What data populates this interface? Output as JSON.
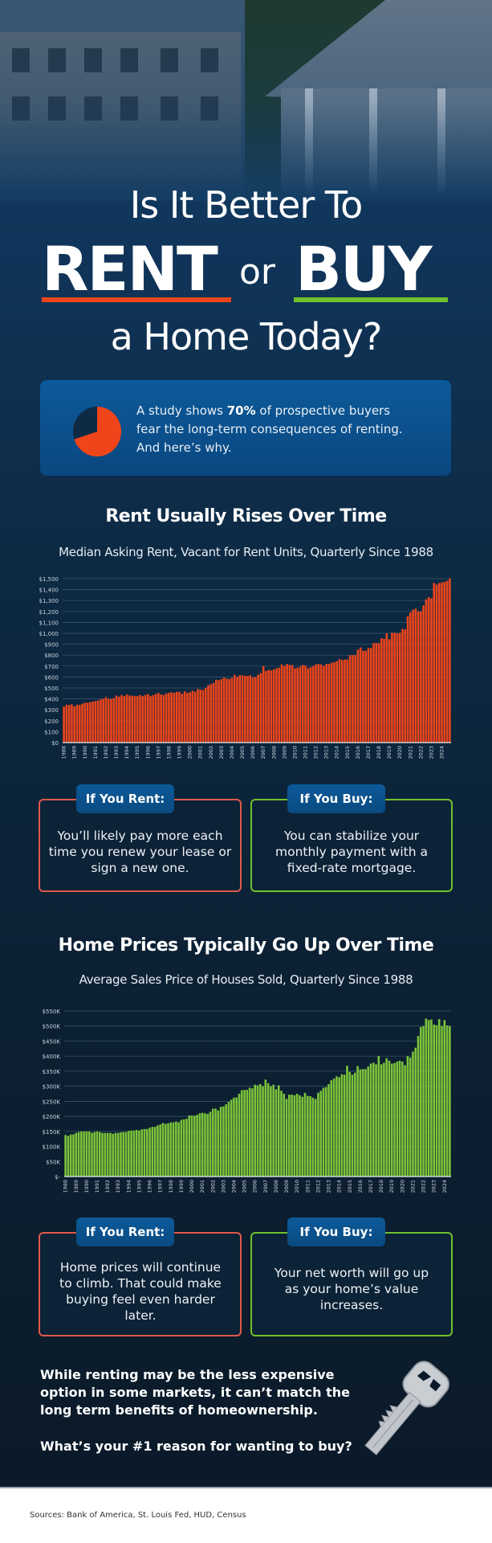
{
  "header": {
    "title_line1": "Is It Better To",
    "title_rent": "RENT",
    "title_or": "or",
    "title_buy": "BUY",
    "title_line3": "a Home Today?"
  },
  "stat": {
    "text_before": "A study shows ",
    "percent": "70%",
    "text_after": " of prospective buyers fear the long-term consequences of renting. And here’s why.",
    "pie_value_percent": 70,
    "pie_color": "#f0451b",
    "pie_rest_color": "#0f2a45"
  },
  "colors": {
    "accent_rent": "#f0451b",
    "accent_buy": "#6fc12d",
    "box_blue": "#0c5a9a"
  },
  "section1": {
    "heading": "Rent Usually Rises Over Time",
    "subtitle": "Median Asking Rent, Vacant for Rent Units, Quarterly Since 1988",
    "rent_box": {
      "label": "If You Rent:",
      "text": "You’ll likely pay more each time you renew your lease or sign a new one."
    },
    "buy_box": {
      "label": "If You Buy:",
      "text": "You can stabilize your monthly payment with a fixed-rate mortgage."
    }
  },
  "section2": {
    "heading": "Home Prices Typically Go Up Over Time",
    "subtitle": "Average Sales Price of Houses Sold, Quarterly Since 1988",
    "rent_box": {
      "label": "If You Rent:",
      "text": "Home prices will continue to climb. That could make buying feel even harder later."
    },
    "buy_box": {
      "label": "If You Buy:",
      "text": "Your net worth will go up as your home’s value increases."
    }
  },
  "closing": {
    "text": "While renting may be the less expensive option in some markets, it can’t match the long term benefits of homeownership.",
    "question": "What’s your #1 reason for wanting to buy?"
  },
  "footer": {
    "sources": "Sources: Bank of America, St. Louis Fed, HUD, Census"
  },
  "chart_data": [
    {
      "type": "bar",
      "title": "Median Asking Rent, Vacant for Rent Units, Quarterly Since 1988",
      "color": "#f0451b",
      "ylim": [
        0,
        1500
      ],
      "yticks": [
        "$0",
        "$100",
        "$200",
        "$300",
        "$400",
        "$500",
        "$600",
        "$700",
        "$800",
        "$900",
        "$1,000",
        "$1,100",
        "$1,200",
        "$1,300",
        "$1,400",
        "$1,500"
      ],
      "grid": true,
      "x_start_year": 1988,
      "xticks": [
        "1988",
        "1989",
        "1990",
        "1991",
        "1992",
        "1993",
        "1994",
        "1995",
        "1996",
        "1997",
        "1998",
        "1999",
        "2000",
        "2001",
        "2002",
        "2003",
        "2004",
        "2005",
        "2006",
        "2007",
        "2008",
        "2009",
        "2010",
        "2011",
        "2012",
        "2013",
        "2014",
        "2015",
        "2016",
        "2017",
        "2018",
        "2019",
        "2020",
        "2021",
        "2022",
        "2023",
        "2024"
      ],
      "values": [
        330,
        345,
        345,
        350,
        330,
        345,
        345,
        355,
        365,
        365,
        370,
        375,
        380,
        385,
        395,
        400,
        415,
        400,
        400,
        405,
        430,
        420,
        435,
        425,
        440,
        430,
        430,
        425,
        425,
        435,
        425,
        435,
        445,
        425,
        435,
        445,
        455,
        440,
        435,
        450,
        455,
        460,
        455,
        465,
        465,
        445,
        470,
        455,
        460,
        475,
        465,
        490,
        485,
        480,
        500,
        525,
        535,
        545,
        575,
        570,
        580,
        595,
        585,
        580,
        590,
        620,
        600,
        615,
        615,
        610,
        610,
        615,
        595,
        600,
        620,
        635,
        700,
        655,
        665,
        660,
        670,
        680,
        685,
        715,
        700,
        720,
        710,
        710,
        680,
        685,
        695,
        710,
        705,
        680,
        690,
        700,
        715,
        720,
        715,
        700,
        720,
        720,
        730,
        735,
        745,
        765,
        755,
        760,
        760,
        800,
        800,
        800,
        850,
        870,
        840,
        840,
        865,
        865,
        910,
        910,
        910,
        955,
        950,
        1000,
        945,
        1005,
        1005,
        1000,
        1005,
        1040,
        1035,
        1155,
        1190,
        1215,
        1225,
        1200,
        1200,
        1255,
        1310,
        1330,
        1320,
        1460,
        1445,
        1460,
        1465,
        1470,
        1480,
        1500
      ]
    },
    {
      "type": "bar",
      "title": "Average Sales Price of Houses Sold, Quarterly Since 1988",
      "color": "#7cc43a",
      "ylim": [
        0,
        550
      ],
      "yunit": "thousands of dollars",
      "yticks": [
        "$-",
        "$50K",
        "$100K",
        "$150K",
        "$200K",
        "$250K",
        "$300K",
        "$350K",
        "$400K",
        "$450K",
        "$500K",
        "$550K"
      ],
      "grid": true,
      "x_start_year": 1988,
      "xticks": [
        "1988",
        "1989",
        "1990",
        "1991",
        "1992",
        "1993",
        "1994",
        "1995",
        "1996",
        "1997",
        "1998",
        "1999",
        "2000",
        "2001",
        "2002",
        "2003",
        "2004",
        "2005",
        "2006",
        "2007",
        "2008",
        "2009",
        "2010",
        "2011",
        "2012",
        "2013",
        "2014",
        "2015",
        "2016",
        "2017",
        "2018",
        "2019",
        "2020",
        "2021",
        "2022",
        "2023",
        "2024"
      ],
      "values": [
        138,
        135,
        140,
        140,
        145,
        148,
        150,
        150,
        150,
        150,
        145,
        148,
        150,
        148,
        145,
        145,
        145,
        145,
        142,
        145,
        145,
        147,
        148,
        148,
        152,
        153,
        153,
        155,
        153,
        157,
        158,
        158,
        162,
        165,
        165,
        170,
        173,
        178,
        175,
        177,
        180,
        180,
        183,
        180,
        188,
        190,
        192,
        203,
        203,
        202,
        205,
        210,
        212,
        210,
        208,
        215,
        225,
        226,
        220,
        232,
        233,
        240,
        248,
        255,
        262,
        263,
        275,
        287,
        288,
        288,
        295,
        293,
        305,
        303,
        307,
        300,
        322,
        310,
        300,
        305,
        290,
        303,
        285,
        275,
        258,
        272,
        272,
        270,
        275,
        270,
        265,
        278,
        268,
        267,
        262,
        258,
        278,
        285,
        295,
        297,
        307,
        320,
        325,
        333,
        330,
        340,
        338,
        368,
        348,
        338,
        345,
        367,
        356,
        357,
        357,
        365,
        375,
        378,
        373,
        400,
        373,
        378,
        393,
        385,
        375,
        377,
        382,
        385,
        382,
        370,
        400,
        395,
        415,
        428,
        467,
        497,
        500,
        525,
        520,
        522,
        505,
        503,
        523,
        500,
        520,
        502,
        500
      ]
    }
  ]
}
